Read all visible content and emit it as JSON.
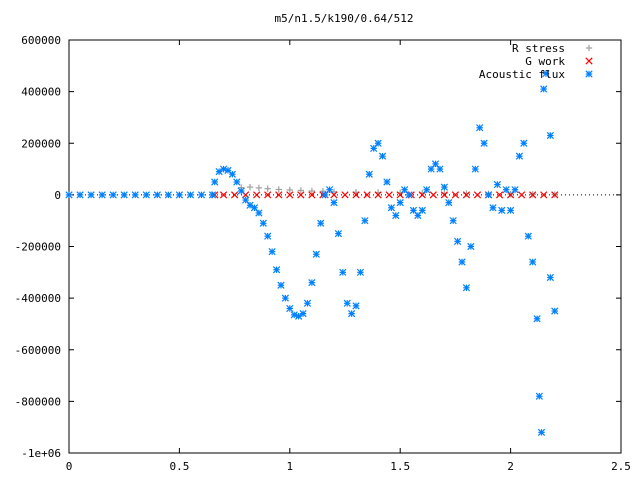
{
  "chart_data": {
    "type": "scatter",
    "title": "m5/n1.5/k190/0.64/512",
    "xlabel": "",
    "ylabel": "",
    "xlim": [
      0,
      2.5
    ],
    "ylim": [
      -1000000,
      600000
    ],
    "x_ticks": [
      "0",
      "0.5",
      "1",
      "1.5",
      "2",
      "2.5"
    ],
    "y_ticks": [
      "600000",
      "400000",
      "200000",
      "0",
      "-200000",
      "-400000",
      "-600000",
      "-800000",
      "-1e+06"
    ],
    "grid": false,
    "legend_position": "top-right",
    "series": [
      {
        "name": "R stress",
        "color": "#a0a0a0",
        "marker": "plus",
        "points": [
          [
            0.78,
            28000
          ],
          [
            0.82,
            30000
          ],
          [
            0.86,
            27000
          ],
          [
            0.9,
            24000
          ],
          [
            0.95,
            21000
          ],
          [
            1.0,
            19000
          ],
          [
            1.05,
            17000
          ],
          [
            1.1,
            15000
          ],
          [
            1.15,
            14000
          ],
          [
            1.2,
            12000
          ],
          [
            1.3,
            10000
          ],
          [
            1.4,
            9000
          ],
          [
            1.5,
            8000
          ],
          [
            1.6,
            7000
          ],
          [
            1.7,
            6000
          ],
          [
            1.8,
            5000
          ],
          [
            1.9,
            4000
          ],
          [
            2.0,
            3000
          ],
          [
            2.1,
            2000
          ],
          [
            2.2,
            1000
          ]
        ]
      },
      {
        "name": "G work",
        "color": "#ff0000",
        "marker": "cross",
        "points": [
          [
            0.66,
            0
          ],
          [
            0.7,
            0
          ],
          [
            0.75,
            0
          ],
          [
            0.8,
            0
          ],
          [
            0.85,
            0
          ],
          [
            0.9,
            0
          ],
          [
            0.95,
            0
          ],
          [
            1.0,
            0
          ],
          [
            1.05,
            0
          ],
          [
            1.1,
            0
          ],
          [
            1.15,
            0
          ],
          [
            1.2,
            0
          ],
          [
            1.25,
            0
          ],
          [
            1.3,
            0
          ],
          [
            1.35,
            0
          ],
          [
            1.4,
            0
          ],
          [
            1.45,
            0
          ],
          [
            1.5,
            0
          ],
          [
            1.55,
            0
          ],
          [
            1.6,
            0
          ],
          [
            1.65,
            0
          ],
          [
            1.7,
            0
          ],
          [
            1.75,
            0
          ],
          [
            1.8,
            0
          ],
          [
            1.85,
            0
          ],
          [
            1.9,
            0
          ],
          [
            1.95,
            0
          ],
          [
            2.0,
            0
          ],
          [
            2.05,
            0
          ],
          [
            2.1,
            0
          ],
          [
            2.15,
            0
          ],
          [
            2.2,
            0
          ]
        ]
      },
      {
        "name": "Acoustic flux",
        "color": "#0080ff",
        "marker": "star",
        "points": [
          [
            0.0,
            0
          ],
          [
            0.05,
            0
          ],
          [
            0.1,
            0
          ],
          [
            0.15,
            0
          ],
          [
            0.2,
            0
          ],
          [
            0.25,
            0
          ],
          [
            0.3,
            0
          ],
          [
            0.35,
            0
          ],
          [
            0.4,
            0
          ],
          [
            0.45,
            0
          ],
          [
            0.5,
            0
          ],
          [
            0.55,
            0
          ],
          [
            0.6,
            0
          ],
          [
            0.65,
            0
          ],
          [
            0.66,
            50000
          ],
          [
            0.68,
            90000
          ],
          [
            0.7,
            100000
          ],
          [
            0.72,
            95000
          ],
          [
            0.74,
            80000
          ],
          [
            0.76,
            50000
          ],
          [
            0.78,
            15000
          ],
          [
            0.8,
            -20000
          ],
          [
            0.82,
            -40000
          ],
          [
            0.84,
            -50000
          ],
          [
            0.86,
            -70000
          ],
          [
            0.88,
            -110000
          ],
          [
            0.9,
            -160000
          ],
          [
            0.92,
            -220000
          ],
          [
            0.94,
            -290000
          ],
          [
            0.96,
            -350000
          ],
          [
            0.98,
            -400000
          ],
          [
            1.0,
            -440000
          ],
          [
            1.02,
            -465000
          ],
          [
            1.04,
            -470000
          ],
          [
            1.06,
            -460000
          ],
          [
            1.08,
            -420000
          ],
          [
            1.1,
            -340000
          ],
          [
            1.12,
            -230000
          ],
          [
            1.14,
            -110000
          ],
          [
            1.16,
            0
          ],
          [
            1.18,
            20000
          ],
          [
            1.2,
            -30000
          ],
          [
            1.22,
            -150000
          ],
          [
            1.24,
            -300000
          ],
          [
            1.26,
            -420000
          ],
          [
            1.28,
            -460000
          ],
          [
            1.3,
            -430000
          ],
          [
            1.32,
            -300000
          ],
          [
            1.34,
            -100000
          ],
          [
            1.36,
            80000
          ],
          [
            1.38,
            180000
          ],
          [
            1.4,
            200000
          ],
          [
            1.42,
            150000
          ],
          [
            1.44,
            50000
          ],
          [
            1.46,
            -50000
          ],
          [
            1.48,
            -80000
          ],
          [
            1.5,
            -30000
          ],
          [
            1.52,
            20000
          ],
          [
            1.54,
            0
          ],
          [
            1.56,
            -60000
          ],
          [
            1.58,
            -80000
          ],
          [
            1.6,
            -60000
          ],
          [
            1.62,
            20000
          ],
          [
            1.64,
            100000
          ],
          [
            1.66,
            120000
          ],
          [
            1.68,
            100000
          ],
          [
            1.7,
            30000
          ],
          [
            1.72,
            -30000
          ],
          [
            1.74,
            -100000
          ],
          [
            1.76,
            -180000
          ],
          [
            1.78,
            -260000
          ],
          [
            1.8,
            -360000
          ],
          [
            1.82,
            -200000
          ],
          [
            1.84,
            100000
          ],
          [
            1.86,
            260000
          ],
          [
            1.88,
            200000
          ],
          [
            1.9,
            0
          ],
          [
            1.92,
            -50000
          ],
          [
            1.94,
            40000
          ],
          [
            1.96,
            -60000
          ],
          [
            1.98,
            20000
          ],
          [
            2.0,
            -60000
          ],
          [
            2.02,
            20000
          ],
          [
            2.04,
            150000
          ],
          [
            2.06,
            200000
          ],
          [
            2.08,
            -160000
          ],
          [
            2.1,
            -260000
          ],
          [
            2.12,
            -480000
          ],
          [
            2.13,
            -780000
          ],
          [
            2.14,
            -920000
          ],
          [
            2.15,
            410000
          ],
          [
            2.16,
            470000
          ],
          [
            2.18,
            230000
          ],
          [
            2.18,
            -320000
          ],
          [
            2.2,
            -450000
          ]
        ]
      }
    ]
  }
}
